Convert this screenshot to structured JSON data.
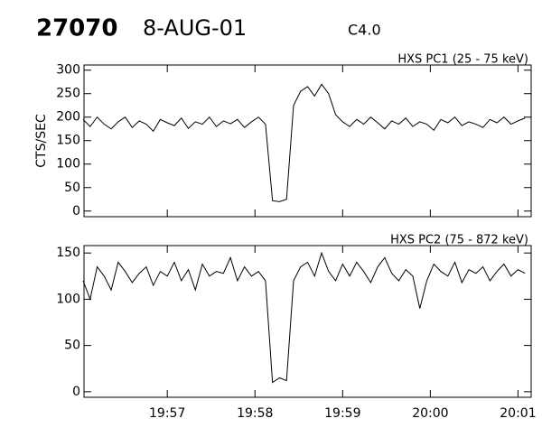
{
  "chart_data": [
    {
      "type": "line",
      "title": "27070",
      "subtitle": "8-AUG-01",
      "annotation": "C4.0",
      "label": "HXS PC1 (25 - 75 keV)",
      "ylabel": "CTS/SEC",
      "x": [
        1196.04,
        1196.12,
        1196.2,
        1196.28,
        1196.36,
        1196.44,
        1196.52,
        1196.6,
        1196.68,
        1196.76,
        1196.84,
        1196.92,
        1197,
        1197.08,
        1197.16,
        1197.24,
        1197.32,
        1197.4,
        1197.48,
        1197.56,
        1197.64,
        1197.72,
        1197.8,
        1197.88,
        1197.96,
        1198.04,
        1198.12,
        1198.2,
        1198.28,
        1198.36,
        1198.44,
        1198.52,
        1198.6,
        1198.68,
        1198.76,
        1198.84,
        1198.92,
        1199,
        1199.08,
        1199.16,
        1199.24,
        1199.32,
        1199.4,
        1199.48,
        1199.56,
        1199.64,
        1199.72,
        1199.8,
        1199.88,
        1199.96,
        1200.04,
        1200.12,
        1200.2,
        1200.28,
        1200.36,
        1200.44,
        1200.52,
        1200.6,
        1200.68,
        1200.76,
        1200.84,
        1200.92,
        1201,
        1201.08
      ],
      "series": [
        {
          "color": "#000000",
          "values": [
            195,
            180,
            200,
            185,
            175,
            190,
            200,
            178,
            192,
            185,
            170,
            195,
            188,
            182,
            198,
            176,
            190,
            185,
            200,
            180,
            192,
            186,
            195,
            178,
            190,
            200,
            185,
            22,
            20,
            25,
            225,
            255,
            265,
            245,
            270,
            250,
            205,
            190,
            180,
            195,
            185,
            200,
            188,
            175,
            192,
            185,
            198,
            180,
            190,
            185,
            172,
            195,
            188,
            200,
            182,
            190,
            185,
            178,
            195,
            188,
            200,
            185,
            192,
            198
          ]
        }
      ],
      "xlim": [
        1196.05,
        1201.15
      ],
      "xticks": [
        1197,
        1198,
        1199,
        1200,
        1201
      ],
      "ylim": [
        -12,
        311
      ],
      "yticks": [
        0,
        50,
        100,
        150,
        200,
        250,
        300
      ]
    },
    {
      "type": "line",
      "label": "HXS PC2 (75 - 872 keV)",
      "x": [
        1196.04,
        1196.12,
        1196.2,
        1196.28,
        1196.36,
        1196.44,
        1196.52,
        1196.6,
        1196.68,
        1196.76,
        1196.84,
        1196.92,
        1197,
        1197.08,
        1197.16,
        1197.24,
        1197.32,
        1197.4,
        1197.48,
        1197.56,
        1197.64,
        1197.72,
        1197.8,
        1197.88,
        1197.96,
        1198.04,
        1198.12,
        1198.2,
        1198.28,
        1198.36,
        1198.44,
        1198.52,
        1198.6,
        1198.68,
        1198.76,
        1198.84,
        1198.92,
        1199,
        1199.08,
        1199.16,
        1199.24,
        1199.32,
        1199.4,
        1199.48,
        1199.56,
        1199.64,
        1199.72,
        1199.8,
        1199.88,
        1199.96,
        1200.04,
        1200.12,
        1200.2,
        1200.28,
        1200.36,
        1200.44,
        1200.52,
        1200.6,
        1200.68,
        1200.76,
        1200.84,
        1200.92,
        1201,
        1201.08
      ],
      "series": [
        {
          "color": "#000000",
          "values": [
            120,
            100,
            135,
            125,
            110,
            140,
            130,
            118,
            128,
            135,
            115,
            130,
            125,
            140,
            120,
            132,
            110,
            138,
            125,
            130,
            128,
            145,
            120,
            135,
            125,
            130,
            120,
            10,
            15,
            12,
            120,
            135,
            140,
            125,
            150,
            130,
            120,
            138,
            125,
            140,
            130,
            118,
            135,
            145,
            128,
            120,
            132,
            125,
            90,
            120,
            138,
            130,
            125,
            140,
            118,
            132,
            128,
            135,
            120,
            130,
            138,
            125,
            132,
            128
          ]
        }
      ],
      "xlim": [
        1196.05,
        1201.15
      ],
      "xticks": [
        {
          "value": 1197,
          "label": "19:57"
        },
        {
          "value": 1198,
          "label": "19:58"
        },
        {
          "value": 1199,
          "label": "19:59"
        },
        {
          "value": 1200,
          "label": "20:00"
        },
        {
          "value": 1201,
          "label": "20:01"
        }
      ],
      "ylim": [
        -6,
        158
      ],
      "yticks": [
        0,
        50,
        100,
        150
      ]
    }
  ]
}
